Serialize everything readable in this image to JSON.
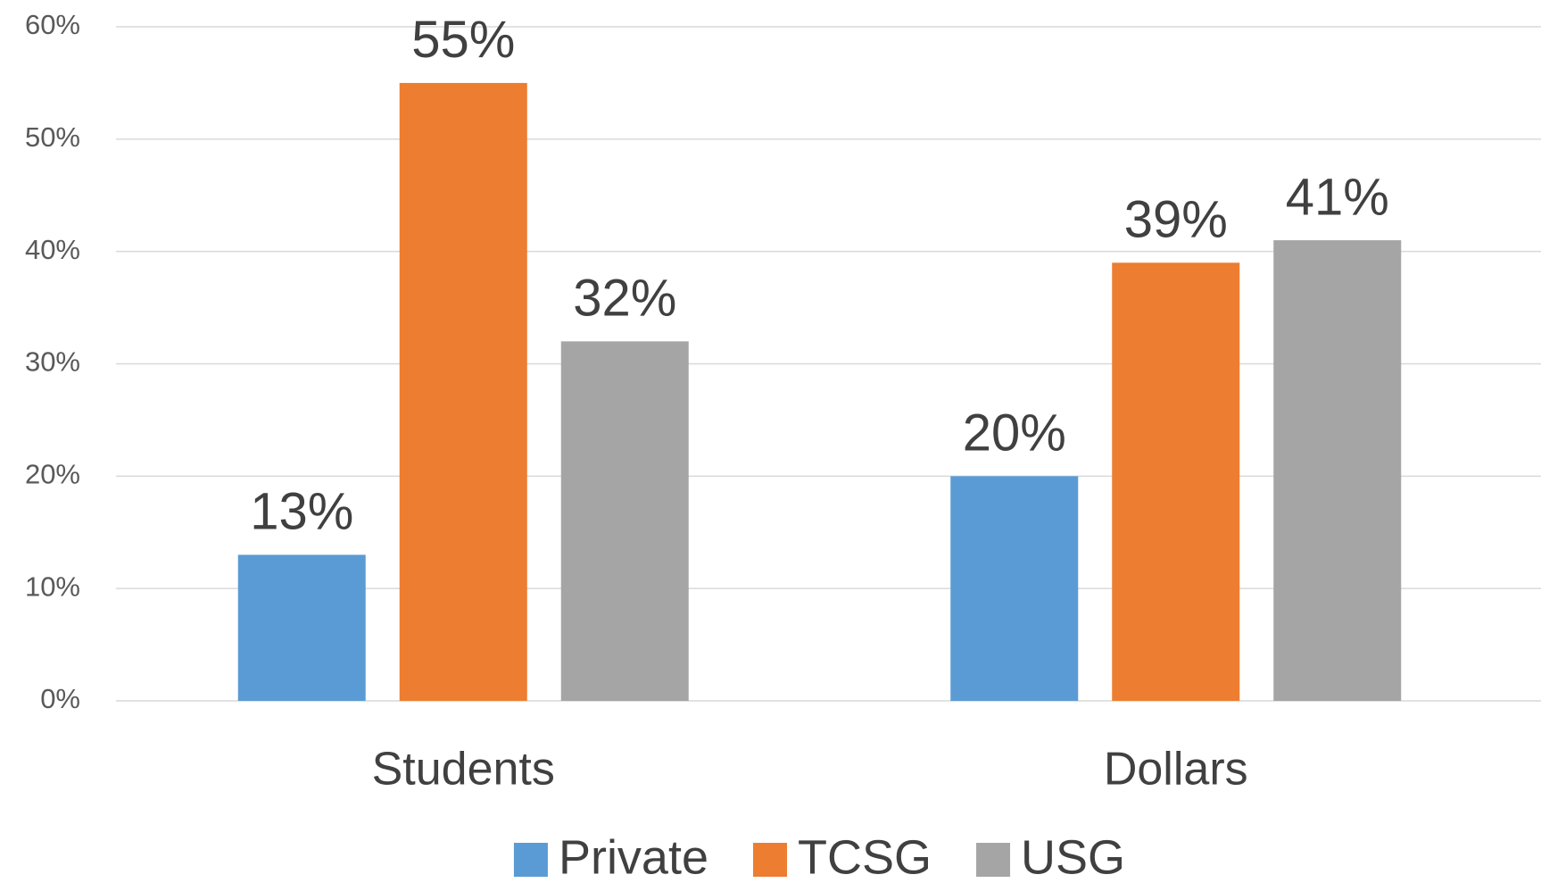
{
  "chart_data": {
    "type": "bar",
    "categories": [
      "Students",
      "Dollars"
    ],
    "series": [
      {
        "name": "Private",
        "color": "#5b9bd5",
        "values": [
          13,
          20
        ],
        "value_labels": [
          "13%",
          "20%"
        ]
      },
      {
        "name": "TCSG",
        "color": "#ed7d31",
        "values": [
          55,
          39
        ],
        "value_labels": [
          "55%",
          "39%"
        ]
      },
      {
        "name": "USG",
        "color": "#a5a5a5",
        "values": [
          32,
          41
        ],
        "value_labels": [
          "32%",
          "41%"
        ]
      }
    ],
    "ylim": [
      0,
      60
    ],
    "yticks": [
      {
        "value": 0,
        "label": "0%"
      },
      {
        "value": 10,
        "label": "10%"
      },
      {
        "value": 20,
        "label": "20%"
      },
      {
        "value": 30,
        "label": "30%"
      },
      {
        "value": 40,
        "label": "40%"
      },
      {
        "value": 50,
        "label": "50%"
      },
      {
        "value": 60,
        "label": "60%"
      }
    ],
    "grid": true,
    "legend": "bottom"
  }
}
